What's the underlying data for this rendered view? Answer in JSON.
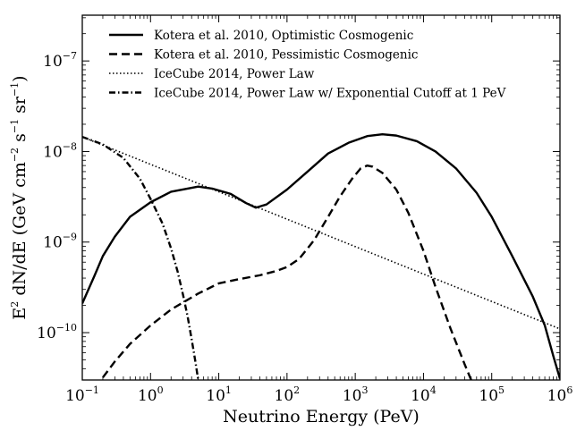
{
  "chart_data": {
    "type": "line",
    "title": "",
    "xlabel": "Neutrino Energy (PeV)",
    "ylabel_main": "E",
    "ylabel_sup1": "2",
    "ylabel_mid": " dN/dE (GeV cm",
    "ylabel_sup2": "−2",
    "ylabel_mid2": " s",
    "ylabel_sup3": "−1",
    "ylabel_mid3": " sr",
    "ylabel_sup4": "−1",
    "ylabel_end": ")",
    "x_scale": "log",
    "y_scale": "log",
    "xlim": [
      0.1,
      1000000
    ],
    "ylim": [
      3e-11,
      3.2e-07
    ],
    "x_ticks": [
      {
        "value": 0.1,
        "base": "10",
        "exp": "−1"
      },
      {
        "value": 1,
        "base": "10",
        "exp": "0"
      },
      {
        "value": 10,
        "base": "10",
        "exp": "1"
      },
      {
        "value": 100,
        "base": "10",
        "exp": "2"
      },
      {
        "value": 1000,
        "base": "10",
        "exp": "3"
      },
      {
        "value": 10000,
        "base": "10",
        "exp": "4"
      },
      {
        "value": 100000,
        "base": "10",
        "exp": "5"
      },
      {
        "value": 1000000,
        "base": "10",
        "exp": "6"
      }
    ],
    "y_ticks": [
      {
        "value": 1e-10,
        "base": "10",
        "exp": "−10"
      },
      {
        "value": 1e-09,
        "base": "10",
        "exp": "−9"
      },
      {
        "value": 1e-08,
        "base": "10",
        "exp": "−8"
      },
      {
        "value": 1e-07,
        "base": "10",
        "exp": "−7"
      }
    ],
    "grid": false,
    "legend_position": "top-left",
    "series": [
      {
        "name": "Kotera et al. 2010, Optimistic Cosmogenic",
        "style": "solid",
        "points": [
          [
            0.1,
            2.1e-10
          ],
          [
            0.15,
            4.2e-10
          ],
          [
            0.2,
            7e-10
          ],
          [
            0.3,
            1.15e-09
          ],
          [
            0.5,
            1.9e-09
          ],
          [
            1,
            2.75e-09
          ],
          [
            2,
            3.6e-09
          ],
          [
            5,
            4.1e-09
          ],
          [
            8,
            3.9e-09
          ],
          [
            15,
            3.4e-09
          ],
          [
            25,
            2.7e-09
          ],
          [
            35,
            2.4e-09
          ],
          [
            50,
            2.6e-09
          ],
          [
            100,
            3.8e-09
          ],
          [
            200,
            6e-09
          ],
          [
            400,
            9.5e-09
          ],
          [
            800,
            1.25e-08
          ],
          [
            1500,
            1.48e-08
          ],
          [
            2500,
            1.55e-08
          ],
          [
            4000,
            1.5e-08
          ],
          [
            8000,
            1.3e-08
          ],
          [
            15000,
            1e-08
          ],
          [
            30000,
            6.5e-09
          ],
          [
            60000,
            3.5e-09
          ],
          [
            100000,
            1.9e-09
          ],
          [
            200000,
            7e-10
          ],
          [
            400000,
            2.5e-10
          ],
          [
            600000,
            1.2e-10
          ],
          [
            800000,
            5.5e-11
          ],
          [
            1000000,
            3.1e-11
          ]
        ]
      },
      {
        "name": "Kotera et al. 2010, Pessimistic Cosmogenic",
        "style": "dashed",
        "points": [
          [
            0.2,
            3.2e-11
          ],
          [
            0.3,
            4.8e-11
          ],
          [
            0.5,
            7.5e-11
          ],
          [
            1,
            1.2e-10
          ],
          [
            2,
            1.8e-10
          ],
          [
            5,
            2.7e-10
          ],
          [
            10,
            3.5e-10
          ],
          [
            20,
            3.9e-10
          ],
          [
            40,
            4.3e-10
          ],
          [
            70,
            4.8e-10
          ],
          [
            100,
            5.3e-10
          ],
          [
            150,
            6.5e-10
          ],
          [
            250,
            1.05e-09
          ],
          [
            400,
            1.9e-09
          ],
          [
            600,
            3.2e-09
          ],
          [
            900,
            5e-09
          ],
          [
            1200,
            6.5e-09
          ],
          [
            1500,
            7e-09
          ],
          [
            1800,
            6.8e-09
          ],
          [
            2500,
            5.8e-09
          ],
          [
            4000,
            3.8e-09
          ],
          [
            6000,
            2.1e-09
          ],
          [
            10000,
            8e-10
          ],
          [
            15000,
            3.2e-10
          ],
          [
            25000,
            1.1e-10
          ],
          [
            40000,
            4.5e-11
          ],
          [
            50000,
            3e-11
          ]
        ]
      },
      {
        "name": "IceCube 2014, Power Law",
        "style": "dotted",
        "points": [
          [
            0.1,
            1.45e-08
          ],
          [
            1000000,
            1.1e-10
          ]
        ]
      },
      {
        "name": "IceCube 2014, Power Law w/ Exponential Cutoff at 1 PeV",
        "style": "dashdot",
        "points": [
          [
            0.1,
            1.45e-08
          ],
          [
            0.2,
            1.2e-08
          ],
          [
            0.4,
            8.5e-09
          ],
          [
            0.7,
            5e-09
          ],
          [
            1,
            3e-09
          ],
          [
            1.5,
            1.6e-09
          ],
          [
            2,
            8.5e-10
          ],
          [
            2.5,
            4.7e-10
          ],
          [
            3,
            2.6e-10
          ],
          [
            3.5,
            1.5e-10
          ],
          [
            4,
            8.5e-11
          ],
          [
            4.5,
            5e-11
          ],
          [
            5,
            3e-11
          ]
        ]
      }
    ]
  }
}
